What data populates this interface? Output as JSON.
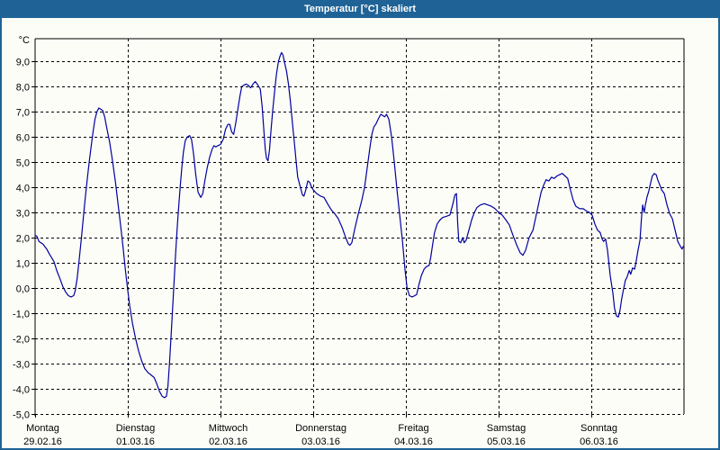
{
  "window": {
    "title": "Temperatur [°C] skaliert"
  },
  "colors": {
    "titlebar": "#1f6396",
    "window_border": "#1f6396",
    "background": "#fdfdf8",
    "grid": "#000000",
    "axis": "#000000",
    "line": "#0000a0",
    "title_text": "#ffffff",
    "label_text": "#000000"
  },
  "chart_data": {
    "type": "line",
    "title": "Temperatur [°C] skaliert",
    "y_unit_label": "°C",
    "xlabel": "",
    "ylabel": "",
    "grid": true,
    "legend": false,
    "ylim": [
      -5.0,
      9.9
    ],
    "y_tick_step": 1.0,
    "y_tick_labels": [
      "-5,0",
      "-4,0",
      "-3,0",
      "-2,0",
      "-1,0",
      "0,0",
      "1,0",
      "2,0",
      "3,0",
      "4,0",
      "5,0",
      "6,0",
      "7,0",
      "8,0",
      "9,0"
    ],
    "x_hours_total": 168,
    "x_ticks": [
      {
        "hour": 0,
        "day": "Montag",
        "date": "29.02.16"
      },
      {
        "hour": 24,
        "day": "Dienstag",
        "date": "01.03.16"
      },
      {
        "hour": 48,
        "day": "Mittwoch",
        "date": "02.03.16"
      },
      {
        "hour": 72,
        "day": "Donnerstag",
        "date": "03.03.16"
      },
      {
        "hour": 96,
        "day": "Freitag",
        "date": "04.03.16"
      },
      {
        "hour": 120,
        "day": "Samstag",
        "date": "05.03.16"
      },
      {
        "hour": 144,
        "day": "Sonntag",
        "date": "06.03.16"
      }
    ],
    "series": [
      {
        "name": "Temperatur",
        "unit": "°C",
        "color": "#0000a0",
        "points": [
          [
            0,
            2.1
          ],
          [
            0.5,
            2.05
          ],
          [
            1,
            1.85
          ],
          [
            1.5,
            1.8
          ],
          [
            2,
            1.75
          ],
          [
            3,
            1.55
          ],
          [
            3.7,
            1.35
          ],
          [
            4.9,
            1.05
          ],
          [
            5.6,
            0.7
          ],
          [
            6.5,
            0.35
          ],
          [
            7.2,
            0.05
          ],
          [
            7.9,
            -0.15
          ],
          [
            8.6,
            -0.3
          ],
          [
            9.3,
            -0.35
          ],
          [
            10,
            -0.3
          ],
          [
            10.4,
            -0.1
          ],
          [
            10.9,
            0.4
          ],
          [
            11.4,
            1.1
          ],
          [
            12,
            2
          ],
          [
            12.5,
            2.8
          ],
          [
            13,
            3.6
          ],
          [
            13.5,
            4.3
          ],
          [
            14,
            5
          ],
          [
            14.5,
            5.6
          ],
          [
            15,
            6.2
          ],
          [
            15.5,
            6.7
          ],
          [
            16,
            7
          ],
          [
            16.5,
            7.15
          ],
          [
            17,
            7.1
          ],
          [
            17.5,
            7.05
          ],
          [
            18,
            6.8
          ],
          [
            18.5,
            6.4
          ],
          [
            19.3,
            5.8
          ],
          [
            20,
            5.1
          ],
          [
            20.8,
            4.2
          ],
          [
            21.5,
            3.3
          ],
          [
            22.2,
            2.4
          ],
          [
            22.8,
            1.6
          ],
          [
            23.4,
            0.7
          ],
          [
            24,
            -0.1
          ],
          [
            24.5,
            -0.7
          ],
          [
            25.2,
            -1.4
          ],
          [
            26,
            -2
          ],
          [
            26.8,
            -2.5
          ],
          [
            27.6,
            -2.9
          ],
          [
            28.4,
            -3.2
          ],
          [
            29.2,
            -3.35
          ],
          [
            30,
            -3.45
          ],
          [
            30.8,
            -3.55
          ],
          [
            31.5,
            -3.8
          ],
          [
            32.2,
            -4.1
          ],
          [
            32.9,
            -4.3
          ],
          [
            33.5,
            -4.35
          ],
          [
            34,
            -4.3
          ],
          [
            34.4,
            -3.9
          ],
          [
            34.8,
            -3
          ],
          [
            35.2,
            -1.9
          ],
          [
            35.6,
            -0.8
          ],
          [
            36,
            0.3
          ],
          [
            36.4,
            1.4
          ],
          [
            36.8,
            2.4
          ],
          [
            37.2,
            3.3
          ],
          [
            37.6,
            4.1
          ],
          [
            38,
            4.8
          ],
          [
            38.4,
            5.4
          ],
          [
            38.9,
            5.85
          ],
          [
            39.4,
            6
          ],
          [
            40,
            6.05
          ],
          [
            40.5,
            5.9
          ],
          [
            41,
            5.35
          ],
          [
            41.6,
            4.5
          ],
          [
            42.2,
            3.8
          ],
          [
            42.9,
            3.6
          ],
          [
            43.4,
            3.75
          ],
          [
            44,
            4.3
          ],
          [
            44.6,
            4.8
          ],
          [
            45.2,
            5.2
          ],
          [
            45.8,
            5.5
          ],
          [
            46.3,
            5.65
          ],
          [
            46.8,
            5.6
          ],
          [
            47.3,
            5.65
          ],
          [
            48,
            5.7
          ],
          [
            48.7,
            5.9
          ],
          [
            49.3,
            6.3
          ],
          [
            49.9,
            6.5
          ],
          [
            50.4,
            6.5
          ],
          [
            50.9,
            6.2
          ],
          [
            51.4,
            6.1
          ],
          [
            51.9,
            6.5
          ],
          [
            52.5,
            7.1
          ],
          [
            53,
            7.6
          ],
          [
            53.5,
            8
          ],
          [
            54,
            8.05
          ],
          [
            54.6,
            8.1
          ],
          [
            55.2,
            8.05
          ],
          [
            55.8,
            7.95
          ],
          [
            56.4,
            8.1
          ],
          [
            57,
            8.2
          ],
          [
            57.5,
            8.1
          ],
          [
            58.3,
            7.9
          ],
          [
            58.8,
            7.2
          ],
          [
            59.2,
            6.3
          ],
          [
            59.6,
            5.5
          ],
          [
            59.9,
            5.15
          ],
          [
            60.3,
            5.05
          ],
          [
            60.7,
            5.5
          ],
          [
            61.1,
            6.3
          ],
          [
            61.5,
            7
          ],
          [
            62,
            7.8
          ],
          [
            62.5,
            8.5
          ],
          [
            63,
            9
          ],
          [
            63.4,
            9.2
          ],
          [
            63.8,
            9.35
          ],
          [
            64.2,
            9.25
          ],
          [
            64.6,
            8.95
          ],
          [
            65.1,
            8.6
          ],
          [
            65.6,
            8.1
          ],
          [
            66.1,
            7.4
          ],
          [
            66.6,
            6.6
          ],
          [
            67.1,
            5.8
          ],
          [
            67.6,
            5
          ],
          [
            68,
            4.4
          ],
          [
            68.6,
            4.05
          ],
          [
            69.2,
            3.7
          ],
          [
            69.6,
            3.65
          ],
          [
            70.1,
            3.9
          ],
          [
            70.6,
            4.25
          ],
          [
            71.1,
            4.2
          ],
          [
            71.6,
            4
          ],
          [
            72,
            3.9
          ],
          [
            72.9,
            3.75
          ],
          [
            73.9,
            3.65
          ],
          [
            74.8,
            3.6
          ],
          [
            75.7,
            3.35
          ],
          [
            76.7,
            3.1
          ],
          [
            77.6,
            2.95
          ],
          [
            78.5,
            2.75
          ],
          [
            79.5,
            2.4
          ],
          [
            80.4,
            2
          ],
          [
            81.1,
            1.75
          ],
          [
            81.5,
            1.7
          ],
          [
            82,
            1.8
          ],
          [
            82.7,
            2.3
          ],
          [
            83.6,
            2.9
          ],
          [
            84.6,
            3.5
          ],
          [
            85.3,
            4
          ],
          [
            86,
            4.8
          ],
          [
            86.7,
            5.6
          ],
          [
            87.2,
            6.1
          ],
          [
            87.7,
            6.4
          ],
          [
            88.2,
            6.5
          ],
          [
            88.8,
            6.7
          ],
          [
            89.5,
            6.9
          ],
          [
            90,
            6.85
          ],
          [
            90.5,
            6.8
          ],
          [
            91,
            6.9
          ],
          [
            91.6,
            6.7
          ],
          [
            92.3,
            6
          ],
          [
            93,
            5
          ],
          [
            93.7,
            3.9
          ],
          [
            94.4,
            2.9
          ],
          [
            95.1,
            1.9
          ],
          [
            95.8,
            0.7
          ],
          [
            96.3,
            0
          ],
          [
            96.9,
            -0.3
          ],
          [
            97.6,
            -0.35
          ],
          [
            98.3,
            -0.3
          ],
          [
            98.8,
            -0.25
          ],
          [
            99.3,
            0.1
          ],
          [
            100,
            0.5
          ],
          [
            100.7,
            0.75
          ],
          [
            101.3,
            0.85
          ],
          [
            102,
            0.9
          ],
          [
            102.4,
            1.2
          ],
          [
            102.9,
            1.7
          ],
          [
            103.4,
            2.2
          ],
          [
            104.1,
            2.55
          ],
          [
            104.8,
            2.7
          ],
          [
            105.5,
            2.8
          ],
          [
            106.5,
            2.85
          ],
          [
            107.4,
            2.9
          ],
          [
            108.1,
            3.3
          ],
          [
            108.7,
            3.7
          ],
          [
            109.1,
            3.75
          ],
          [
            109.4,
            2.6
          ],
          [
            109.7,
            1.85
          ],
          [
            110.2,
            1.8
          ],
          [
            110.7,
            2
          ],
          [
            111.1,
            1.8
          ],
          [
            111.6,
            1.9
          ],
          [
            112.3,
            2.3
          ],
          [
            113,
            2.7
          ],
          [
            113.7,
            3
          ],
          [
            114.4,
            3.2
          ],
          [
            115.3,
            3.3
          ],
          [
            116.3,
            3.35
          ],
          [
            117.2,
            3.3
          ],
          [
            118.1,
            3.25
          ],
          [
            119.1,
            3.15
          ],
          [
            120,
            3
          ],
          [
            120.9,
            2.9
          ],
          [
            121.9,
            2.7
          ],
          [
            122.8,
            2.5
          ],
          [
            123.7,
            2.1
          ],
          [
            124.7,
            1.7
          ],
          [
            125.6,
            1.4
          ],
          [
            126.3,
            1.3
          ],
          [
            127,
            1.5
          ],
          [
            127.9,
            2
          ],
          [
            128.9,
            2.3
          ],
          [
            129.6,
            2.8
          ],
          [
            130.3,
            3.3
          ],
          [
            131,
            3.8
          ],
          [
            131.7,
            4.1
          ],
          [
            132.3,
            4.3
          ],
          [
            133,
            4.25
          ],
          [
            133.7,
            4.4
          ],
          [
            134.4,
            4.35
          ],
          [
            135.1,
            4.45
          ],
          [
            135.8,
            4.5
          ],
          [
            136.5,
            4.55
          ],
          [
            137.2,
            4.45
          ],
          [
            137.9,
            4.35
          ],
          [
            138.6,
            3.9
          ],
          [
            139.3,
            3.5
          ],
          [
            140,
            3.25
          ],
          [
            141,
            3.15
          ],
          [
            141.9,
            3.15
          ],
          [
            142.8,
            3.05
          ],
          [
            143.5,
            3
          ],
          [
            144.2,
            2.9
          ],
          [
            144.9,
            2.55
          ],
          [
            145.6,
            2.3
          ],
          [
            146.3,
            2.2
          ],
          [
            146.8,
            1.95
          ],
          [
            147.2,
            1.85
          ],
          [
            147.7,
            1.95
          ],
          [
            148.2,
            1.5
          ],
          [
            148.9,
            0.5
          ],
          [
            149.6,
            -0.2
          ],
          [
            150,
            -0.8
          ],
          [
            150.5,
            -1.1
          ],
          [
            151,
            -1.15
          ],
          [
            151.4,
            -0.9
          ],
          [
            151.9,
            -0.4
          ],
          [
            152.4,
            0
          ],
          [
            152.8,
            0.3
          ],
          [
            153.3,
            0.45
          ],
          [
            153.8,
            0.7
          ],
          [
            154.2,
            0.55
          ],
          [
            154.7,
            0.8
          ],
          [
            155.2,
            0.75
          ],
          [
            155.6,
            1.05
          ],
          [
            156.1,
            1.5
          ],
          [
            156.6,
            1.9
          ],
          [
            157,
            2.8
          ],
          [
            157.3,
            3.3
          ],
          [
            157.7,
            3
          ],
          [
            158,
            3.3
          ],
          [
            158.4,
            3.6
          ],
          [
            158.9,
            3.85
          ],
          [
            159.4,
            4.2
          ],
          [
            159.8,
            4.45
          ],
          [
            160.3,
            4.55
          ],
          [
            160.8,
            4.5
          ],
          [
            161.2,
            4.3
          ],
          [
            161.7,
            4.1
          ],
          [
            162.2,
            3.9
          ],
          [
            162.9,
            3.75
          ],
          [
            163.6,
            3.3
          ],
          [
            164.3,
            2.95
          ],
          [
            165,
            2.75
          ],
          [
            165.7,
            2.3
          ],
          [
            166.4,
            1.85
          ],
          [
            167.1,
            1.65
          ],
          [
            167.5,
            1.55
          ],
          [
            167.8,
            1.65
          ]
        ]
      }
    ]
  }
}
